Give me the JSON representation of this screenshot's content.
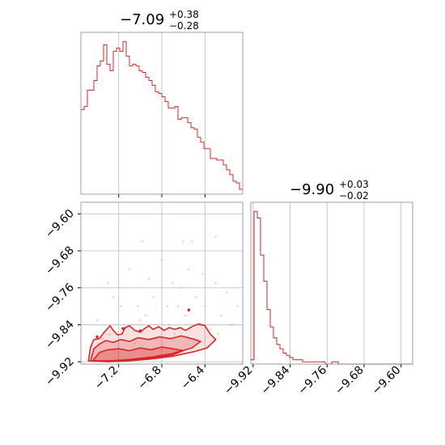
{
  "chart_data": {
    "type": "corner",
    "color": "#d62728",
    "grid": true,
    "params": [
      {
        "title_value": "−7.09",
        "title_plus": "+0.38",
        "title_minus": "−0.28",
        "range": [
          -7.55,
          -6.05
        ],
        "ticks": [
          -7.2,
          -6.8,
          -6.4
        ],
        "tick_labels": [
          "−7.2",
          "−6.8",
          "−6.4"
        ],
        "hist": {
          "bin_start": -7.55,
          "bin_width": 0.03,
          "counts": [
            52,
            54,
            64,
            64,
            70,
            79,
            82,
            92,
            80,
            76,
            88,
            90,
            88,
            94,
            85,
            79,
            80,
            79,
            76,
            75,
            72,
            70,
            67,
            63,
            62,
            60,
            57,
            53,
            53,
            54,
            46,
            47,
            47,
            44,
            41,
            40,
            35,
            32,
            28,
            28,
            22,
            22,
            21,
            21,
            18,
            15,
            12,
            8,
            7,
            3
          ]
        }
      },
      {
        "title_value": "−9.90",
        "title_plus": "+0.03",
        "title_minus": "−0.02",
        "range": [
          -9.925,
          -9.575
        ],
        "ticks": [
          -9.92,
          -9.84,
          -9.76,
          -9.68,
          -9.6
        ],
        "tick_labels": [
          "−9.92",
          "−9.84",
          "−9.76",
          "−9.68",
          "−9.60"
        ],
        "hist": {
          "bin_start": -9.925,
          "bin_width": 0.007,
          "counts": [
            2,
            70,
            67,
            50,
            38,
            25,
            17,
            12,
            9,
            7,
            5,
            4,
            3,
            2,
            2,
            2,
            1,
            1,
            1,
            1,
            1,
            1,
            1,
            0,
            0,
            1,
            1,
            0,
            0,
            0,
            0,
            0,
            0,
            0,
            0,
            0,
            0,
            0,
            0,
            0,
            0,
            0,
            0,
            0,
            0,
            0,
            0,
            0,
            0,
            0
          ]
        }
      }
    ],
    "scatter_2d": {
      "x_param": 0,
      "y_param": 1,
      "points": [
        [
          -7.35,
          -9.87
        ],
        [
          -7.28,
          -9.86
        ],
        [
          -7.15,
          -9.85
        ],
        [
          -7.02,
          -9.8
        ],
        [
          -6.95,
          -9.82
        ],
        [
          -6.88,
          -9.78
        ],
        [
          -6.75,
          -9.8
        ],
        [
          -6.7,
          -9.75
        ],
        [
          -6.62,
          -9.76
        ],
        [
          -6.55,
          -9.72
        ],
        [
          -6.48,
          -9.78
        ],
        [
          -6.4,
          -9.8
        ],
        [
          -6.3,
          -9.75
        ],
        [
          -6.25,
          -9.82
        ],
        [
          -6.2,
          -9.77
        ],
        [
          -7.1,
          -9.72
        ],
        [
          -6.98,
          -9.66
        ],
        [
          -6.6,
          -9.66
        ],
        [
          -6.52,
          -9.66
        ],
        [
          -6.3,
          -9.65
        ],
        [
          -7.25,
          -9.78
        ],
        [
          -7.4,
          -9.83
        ],
        [
          -7.05,
          -9.88
        ],
        [
          -6.85,
          -9.87
        ],
        [
          -6.68,
          -9.86
        ],
        [
          -6.45,
          -9.84
        ],
        [
          -6.35,
          -9.85
        ],
        [
          -6.15,
          -9.84
        ],
        [
          -6.1,
          -9.8
        ],
        [
          -7.18,
          -9.8
        ],
        [
          -6.92,
          -9.74
        ],
        [
          -6.8,
          -9.7
        ],
        [
          -6.58,
          -9.82
        ],
        [
          -6.42,
          -9.73
        ],
        [
          -7.3,
          -9.75
        ],
        [
          -6.65,
          -9.8
        ],
        [
          -6.73,
          -9.84
        ],
        [
          -7.0,
          -9.83
        ],
        [
          -6.5,
          -9.87
        ],
        [
          -6.28,
          -9.86
        ]
      ],
      "highlight_points": [
        [
          -7.16,
          -9.848
        ],
        [
          -7.0,
          -9.853
        ],
        [
          -6.55,
          -9.808
        ],
        [
          -7.4,
          -9.866
        ]
      ],
      "contour_levels": [
        {
          "fill_opacity": 0.14,
          "path": [
            [
              -7.48,
              -9.918
            ],
            [
              -7.46,
              -9.888
            ],
            [
              -7.43,
              -9.872
            ],
            [
              -7.38,
              -9.87
            ],
            [
              -7.33,
              -9.855
            ],
            [
              -7.28,
              -9.842
            ],
            [
              -7.25,
              -9.852
            ],
            [
              -7.21,
              -9.862
            ],
            [
              -7.17,
              -9.86
            ],
            [
              -7.14,
              -9.846
            ],
            [
              -7.1,
              -9.842
            ],
            [
              -7.05,
              -9.852
            ],
            [
              -7.0,
              -9.856
            ],
            [
              -6.96,
              -9.848
            ],
            [
              -6.92,
              -9.842
            ],
            [
              -6.88,
              -9.85
            ],
            [
              -6.83,
              -9.844
            ],
            [
              -6.78,
              -9.852
            ],
            [
              -6.73,
              -9.846
            ],
            [
              -6.68,
              -9.85
            ],
            [
              -6.63,
              -9.846
            ],
            [
              -6.58,
              -9.852
            ],
            [
              -6.52,
              -9.844
            ],
            [
              -6.46,
              -9.838
            ],
            [
              -6.4,
              -9.842
            ],
            [
              -6.35,
              -9.86
            ],
            [
              -6.3,
              -9.872
            ],
            [
              -6.38,
              -9.89
            ],
            [
              -6.5,
              -9.898
            ],
            [
              -6.7,
              -9.908
            ],
            [
              -6.9,
              -9.914
            ],
            [
              -7.1,
              -9.918
            ],
            [
              -7.3,
              -9.92
            ]
          ]
        },
        {
          "fill_opacity": 0.22,
          "path": [
            [
              -7.46,
              -9.918
            ],
            [
              -7.43,
              -9.892
            ],
            [
              -7.38,
              -9.882
            ],
            [
              -7.32,
              -9.874
            ],
            [
              -7.25,
              -9.878
            ],
            [
              -7.18,
              -9.872
            ],
            [
              -7.1,
              -9.876
            ],
            [
              -7.02,
              -9.868
            ],
            [
              -6.92,
              -9.872
            ],
            [
              -6.82,
              -9.866
            ],
            [
              -6.72,
              -9.87
            ],
            [
              -6.62,
              -9.864
            ],
            [
              -6.52,
              -9.87
            ],
            [
              -6.44,
              -9.876
            ],
            [
              -6.52,
              -9.89
            ],
            [
              -6.7,
              -9.902
            ],
            [
              -6.9,
              -9.91
            ],
            [
              -7.1,
              -9.915
            ],
            [
              -7.3,
              -9.918
            ]
          ]
        },
        {
          "fill_opacity": 0.3,
          "path": [
            [
              -7.44,
              -9.918
            ],
            [
              -7.38,
              -9.9
            ],
            [
              -7.3,
              -9.894
            ],
            [
              -7.2,
              -9.892
            ],
            [
              -7.1,
              -9.896
            ],
            [
              -7.0,
              -9.89
            ],
            [
              -6.9,
              -9.894
            ],
            [
              -6.8,
              -9.888
            ],
            [
              -6.7,
              -9.892
            ],
            [
              -6.6,
              -9.896
            ],
            [
              -6.7,
              -9.905
            ],
            [
              -6.9,
              -9.912
            ],
            [
              -7.1,
              -9.916
            ],
            [
              -7.3,
              -9.918
            ]
          ]
        }
      ]
    }
  }
}
